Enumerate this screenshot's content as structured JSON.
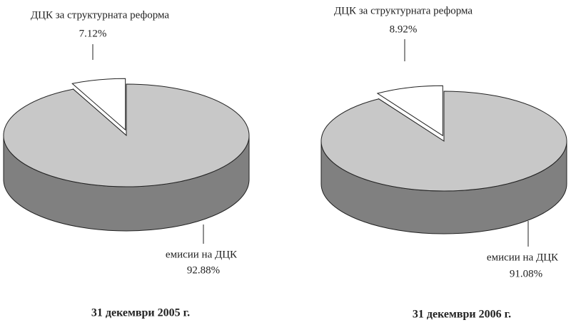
{
  "chart_data": [
    {
      "type": "pie",
      "title": "31 декември 2005 г.",
      "categories": [
        "ДЦК за структурната реформа",
        "емисии на ДЦК"
      ],
      "values": [
        7.12,
        92.88
      ],
      "value_labels": [
        "7.12%",
        "92.88%"
      ],
      "colors": [
        "#ffffff",
        "#c8c8c8"
      ]
    },
    {
      "type": "pie",
      "title": "31 декември 2006 г.",
      "categories": [
        "ДЦК за структурната реформа",
        "емисии на ДЦК"
      ],
      "values": [
        8.92,
        91.08
      ],
      "value_labels": [
        "8.92%",
        "91.08%"
      ],
      "colors": [
        "#ffffff",
        "#c8c8c8"
      ]
    }
  ]
}
